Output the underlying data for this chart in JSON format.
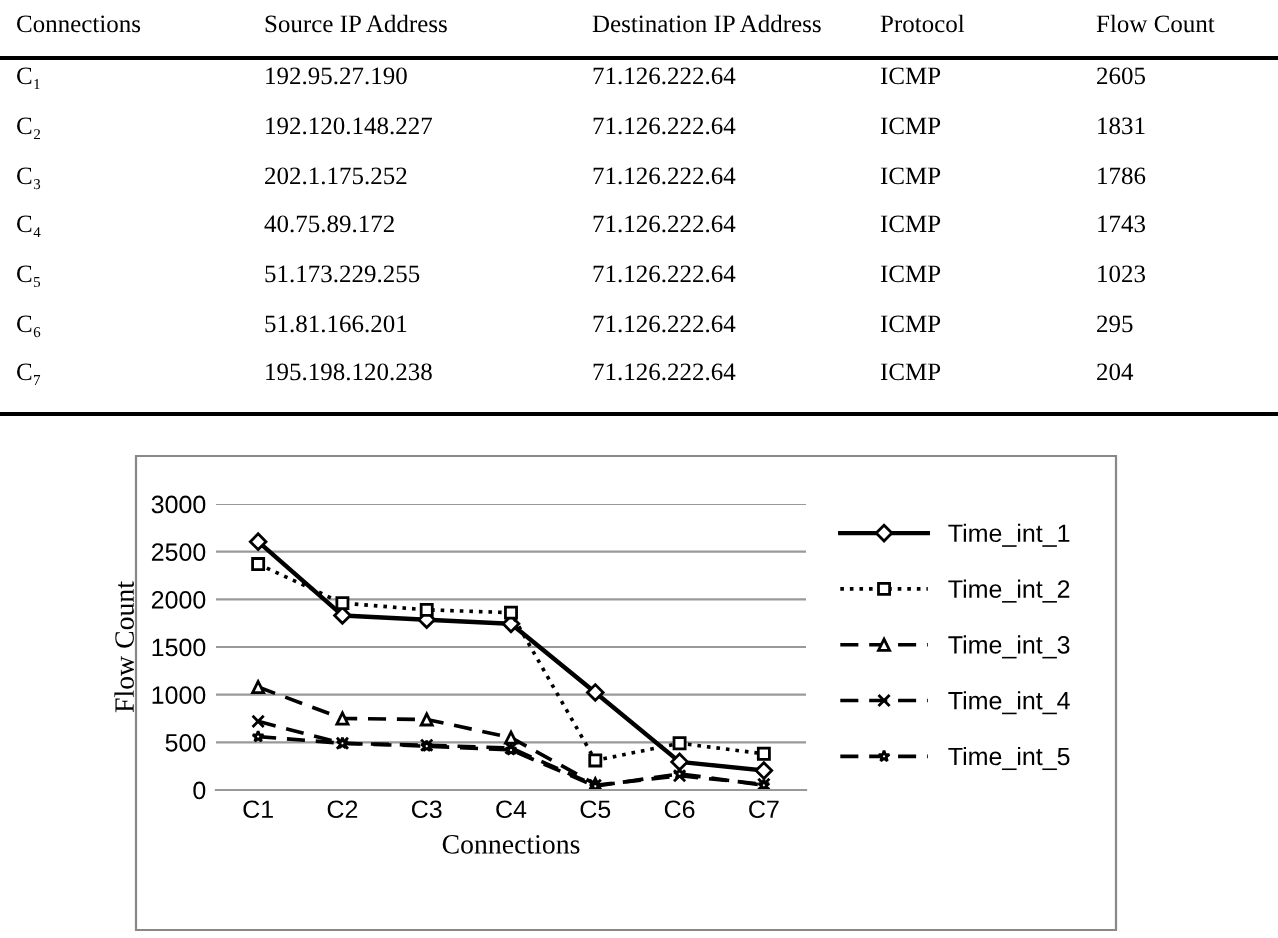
{
  "chart_data": {
    "type": "line",
    "xlabel": "Connections",
    "ylabel": "Flow Count",
    "categories": [
      "C1",
      "C2",
      "C3",
      "C4",
      "C5",
      "C6",
      "C7"
    ],
    "ylim": [
      0,
      3000
    ],
    "yticks": [
      0,
      500,
      1000,
      1500,
      2000,
      2500,
      3000
    ],
    "grid": "y",
    "legend": "right",
    "series": [
      {
        "name": "Time_int_1",
        "color": "#000000",
        "marker": "diamond",
        "line_style": "solid",
        "values": [
          2605,
          1831,
          1786,
          1743,
          1023,
          295,
          204
        ]
      },
      {
        "name": "Time_int_2",
        "color": "#000000",
        "marker": "square",
        "line_style": "dotted",
        "values": [
          2370,
          1960,
          1890,
          1860,
          310,
          490,
          380
        ]
      },
      {
        "name": "Time_int_3",
        "color": "#000000",
        "marker": "triangle",
        "line_style": "dashed",
        "values": [
          1080,
          750,
          740,
          550,
          60,
          null,
          null
        ]
      },
      {
        "name": "Time_int_4",
        "color": "#000000",
        "marker": "cross",
        "line_style": "dashed",
        "values": [
          720,
          490,
          470,
          440,
          50,
          150,
          60
        ]
      },
      {
        "name": "Time_int_5",
        "color": "#000000",
        "marker": "star",
        "line_style": "dashed",
        "values": [
          560,
          490,
          460,
          420,
          40,
          170,
          50
        ]
      }
    ],
    "annotations": [
      "Connections",
      "Source IP Address",
      "Destination IP Address",
      "Protocol",
      "Flow Count",
      "C₁",
      "192.95.27.190",
      "71.126.222.64",
      "ICMP",
      "2605",
      "C₂",
      "192.120.148.227",
      "71.126.222.64",
      "ICMP",
      "1831",
      "C₃",
      "202.1.175.252",
      "71.126.222.64",
      "ICMP",
      "1786",
      "C₄",
      "40.75.89.172",
      "71.126.222.64",
      "ICMP",
      "1743",
      "C₅",
      "51.173.229.255",
      "71.126.222.64",
      "ICMP",
      "1023",
      "C₆",
      "51.81.166.201",
      "71.126.222.64",
      "ICMP",
      "295",
      "C₇",
      "195.198.120.238",
      "71.126.222.64",
      "ICMP",
      "204"
    ]
  }
}
